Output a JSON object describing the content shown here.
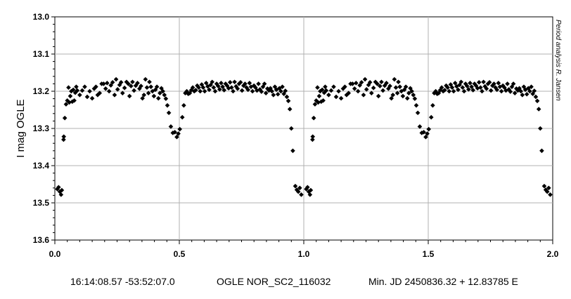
{
  "chart_data": {
    "type": "scatter",
    "ylabel": "I mag OGLE",
    "xlim": [
      0.0,
      2.0
    ],
    "ylim": [
      13.0,
      13.6
    ],
    "y_inverted": true,
    "x_ticks": [
      "0.0",
      "0.5",
      "1.0",
      "1.5",
      "2.0"
    ],
    "y_ticks": [
      "13.0",
      "13.1",
      "13.2",
      "13.3",
      "13.4",
      "13.5",
      "13.6"
    ],
    "grid": true,
    "marker": "diamond",
    "marker_color": "#000000",
    "credit": "Period analysis  R. Jansen",
    "footer": {
      "coords": "16:14:08.57 -53:52:07.0",
      "star_id": "OGLE NOR_SC2_116032",
      "ephemeris": "Min. JD 2450836.32 + 12.83785 E"
    },
    "points": [
      [
        0.01,
        13.463
      ],
      [
        0.015,
        13.458
      ],
      [
        0.02,
        13.47
      ],
      [
        0.025,
        13.478
      ],
      [
        0.028,
        13.466
      ],
      [
        0.035,
        13.33
      ],
      [
        0.036,
        13.322
      ],
      [
        0.04,
        13.272
      ],
      [
        0.045,
        13.235
      ],
      [
        0.05,
        13.225
      ],
      [
        0.055,
        13.19
      ],
      [
        0.058,
        13.23
      ],
      [
        0.062,
        13.213
      ],
      [
        0.066,
        13.2
      ],
      [
        0.07,
        13.228
      ],
      [
        0.074,
        13.196
      ],
      [
        0.078,
        13.225
      ],
      [
        0.082,
        13.204
      ],
      [
        0.086,
        13.188
      ],
      [
        0.09,
        13.198
      ],
      [
        0.1,
        13.21
      ],
      [
        0.11,
        13.198
      ],
      [
        0.12,
        13.188
      ],
      [
        0.13,
        13.215
      ],
      [
        0.14,
        13.2
      ],
      [
        0.15,
        13.219
      ],
      [
        0.158,
        13.193
      ],
      [
        0.165,
        13.188
      ],
      [
        0.172,
        13.21
      ],
      [
        0.18,
        13.205
      ],
      [
        0.188,
        13.18
      ],
      [
        0.196,
        13.18
      ],
      [
        0.204,
        13.193
      ],
      [
        0.21,
        13.178
      ],
      [
        0.218,
        13.2
      ],
      [
        0.225,
        13.184
      ],
      [
        0.232,
        13.176
      ],
      [
        0.24,
        13.21
      ],
      [
        0.246,
        13.168
      ],
      [
        0.252,
        13.195
      ],
      [
        0.26,
        13.183
      ],
      [
        0.266,
        13.176
      ],
      [
        0.272,
        13.205
      ],
      [
        0.28,
        13.191
      ],
      [
        0.288,
        13.175
      ],
      [
        0.295,
        13.18
      ],
      [
        0.3,
        13.213
      ],
      [
        0.306,
        13.186
      ],
      [
        0.312,
        13.175
      ],
      [
        0.318,
        13.198
      ],
      [
        0.325,
        13.185
      ],
      [
        0.332,
        13.178
      ],
      [
        0.34,
        13.193
      ],
      [
        0.346,
        13.186
      ],
      [
        0.352,
        13.219
      ],
      [
        0.358,
        13.21
      ],
      [
        0.364,
        13.168
      ],
      [
        0.37,
        13.19
      ],
      [
        0.376,
        13.205
      ],
      [
        0.38,
        13.175
      ],
      [
        0.386,
        13.188
      ],
      [
        0.392,
        13.2
      ],
      [
        0.398,
        13.213
      ],
      [
        0.404,
        13.196
      ],
      [
        0.41,
        13.188
      ],
      [
        0.416,
        13.219
      ],
      [
        0.422,
        13.205
      ],
      [
        0.428,
        13.192
      ],
      [
        0.434,
        13.2
      ],
      [
        0.44,
        13.21
      ],
      [
        0.446,
        13.22
      ],
      [
        0.452,
        13.238
      ],
      [
        0.458,
        13.258
      ],
      [
        0.466,
        13.295
      ],
      [
        0.474,
        13.312
      ],
      [
        0.482,
        13.31
      ],
      [
        0.49,
        13.323
      ],
      [
        0.496,
        13.314
      ],
      [
        0.502,
        13.302
      ],
      [
        0.512,
        13.27
      ],
      [
        0.518,
        13.238
      ],
      [
        0.524,
        13.205
      ],
      [
        0.53,
        13.2
      ],
      [
        0.536,
        13.207
      ],
      [
        0.542,
        13.205
      ],
      [
        0.548,
        13.197
      ],
      [
        0.554,
        13.19
      ],
      [
        0.56,
        13.2
      ],
      [
        0.566,
        13.197
      ],
      [
        0.572,
        13.185
      ],
      [
        0.578,
        13.19
      ],
      [
        0.584,
        13.2
      ],
      [
        0.59,
        13.182
      ],
      [
        0.596,
        13.19
      ],
      [
        0.602,
        13.2
      ],
      [
        0.608,
        13.178
      ],
      [
        0.614,
        13.187
      ],
      [
        0.62,
        13.196
      ],
      [
        0.626,
        13.183
      ],
      [
        0.632,
        13.175
      ],
      [
        0.638,
        13.19
      ],
      [
        0.644,
        13.2
      ],
      [
        0.65,
        13.18
      ],
      [
        0.656,
        13.186
      ],
      [
        0.662,
        13.195
      ],
      [
        0.668,
        13.178
      ],
      [
        0.674,
        13.188
      ],
      [
        0.68,
        13.197
      ],
      [
        0.686,
        13.18
      ],
      [
        0.692,
        13.185
      ],
      [
        0.698,
        13.192
      ],
      [
        0.704,
        13.176
      ],
      [
        0.71,
        13.19
      ],
      [
        0.716,
        13.2
      ],
      [
        0.722,
        13.175
      ],
      [
        0.728,
        13.187
      ],
      [
        0.734,
        13.193
      ],
      [
        0.74,
        13.18
      ],
      [
        0.746,
        13.176
      ],
      [
        0.752,
        13.198
      ],
      [
        0.758,
        13.185
      ],
      [
        0.764,
        13.18
      ],
      [
        0.77,
        13.19
      ],
      [
        0.776,
        13.196
      ],
      [
        0.782,
        13.178
      ],
      [
        0.788,
        13.188
      ],
      [
        0.794,
        13.2
      ],
      [
        0.8,
        13.185
      ],
      [
        0.806,
        13.19
      ],
      [
        0.812,
        13.198
      ],
      [
        0.818,
        13.18
      ],
      [
        0.824,
        13.195
      ],
      [
        0.83,
        13.201
      ],
      [
        0.836,
        13.188
      ],
      [
        0.842,
        13.18
      ],
      [
        0.848,
        13.205
      ],
      [
        0.854,
        13.193
      ],
      [
        0.86,
        13.198
      ],
      [
        0.866,
        13.192
      ],
      [
        0.872,
        13.2
      ],
      [
        0.878,
        13.21
      ],
      [
        0.884,
        13.188
      ],
      [
        0.89,
        13.196
      ],
      [
        0.896,
        13.208
      ],
      [
        0.902,
        13.192
      ],
      [
        0.908,
        13.2
      ],
      [
        0.914,
        13.188
      ],
      [
        0.92,
        13.207
      ],
      [
        0.926,
        13.199
      ],
      [
        0.932,
        13.215
      ],
      [
        0.938,
        13.226
      ],
      [
        0.944,
        13.248
      ],
      [
        0.95,
        13.3
      ],
      [
        0.956,
        13.36
      ],
      [
        0.966,
        13.455
      ],
      [
        0.972,
        13.465
      ],
      [
        0.978,
        13.47
      ],
      [
        0.984,
        13.46
      ],
      [
        0.99,
        13.478
      ],
      [
        1.01,
        13.463
      ],
      [
        1.015,
        13.458
      ],
      [
        1.02,
        13.47
      ],
      [
        1.025,
        13.478
      ],
      [
        1.028,
        13.466
      ],
      [
        1.035,
        13.33
      ],
      [
        1.036,
        13.322
      ],
      [
        1.04,
        13.272
      ],
      [
        1.045,
        13.235
      ],
      [
        1.05,
        13.225
      ],
      [
        1.055,
        13.19
      ],
      [
        1.058,
        13.23
      ],
      [
        1.062,
        13.213
      ],
      [
        1.066,
        13.2
      ],
      [
        1.07,
        13.228
      ],
      [
        1.074,
        13.196
      ],
      [
        1.078,
        13.225
      ],
      [
        1.082,
        13.204
      ],
      [
        1.086,
        13.188
      ],
      [
        1.09,
        13.198
      ],
      [
        1.1,
        13.21
      ],
      [
        1.11,
        13.198
      ],
      [
        1.12,
        13.188
      ],
      [
        1.13,
        13.215
      ],
      [
        1.14,
        13.2
      ],
      [
        1.15,
        13.219
      ],
      [
        1.158,
        13.193
      ],
      [
        1.165,
        13.188
      ],
      [
        1.172,
        13.21
      ],
      [
        1.18,
        13.205
      ],
      [
        1.188,
        13.18
      ],
      [
        1.196,
        13.18
      ],
      [
        1.204,
        13.193
      ],
      [
        1.21,
        13.178
      ],
      [
        1.218,
        13.2
      ],
      [
        1.225,
        13.184
      ],
      [
        1.232,
        13.176
      ],
      [
        1.24,
        13.21
      ],
      [
        1.246,
        13.168
      ],
      [
        1.252,
        13.195
      ],
      [
        1.26,
        13.183
      ],
      [
        1.266,
        13.176
      ],
      [
        1.272,
        13.205
      ],
      [
        1.28,
        13.191
      ],
      [
        1.288,
        13.175
      ],
      [
        1.295,
        13.18
      ],
      [
        1.3,
        13.213
      ],
      [
        1.306,
        13.186
      ],
      [
        1.312,
        13.175
      ],
      [
        1.318,
        13.198
      ],
      [
        1.325,
        13.185
      ],
      [
        1.332,
        13.178
      ],
      [
        1.34,
        13.193
      ],
      [
        1.346,
        13.186
      ],
      [
        1.352,
        13.219
      ],
      [
        1.358,
        13.21
      ],
      [
        1.364,
        13.168
      ],
      [
        1.37,
        13.19
      ],
      [
        1.376,
        13.205
      ],
      [
        1.38,
        13.175
      ],
      [
        1.386,
        13.188
      ],
      [
        1.392,
        13.2
      ],
      [
        1.398,
        13.213
      ],
      [
        1.404,
        13.196
      ],
      [
        1.41,
        13.188
      ],
      [
        1.416,
        13.219
      ],
      [
        1.422,
        13.205
      ],
      [
        1.428,
        13.192
      ],
      [
        1.434,
        13.2
      ],
      [
        1.44,
        13.21
      ],
      [
        1.446,
        13.22
      ],
      [
        1.452,
        13.238
      ],
      [
        1.458,
        13.258
      ],
      [
        1.466,
        13.295
      ],
      [
        1.474,
        13.312
      ],
      [
        1.482,
        13.31
      ],
      [
        1.49,
        13.323
      ],
      [
        1.496,
        13.314
      ],
      [
        1.502,
        13.302
      ],
      [
        1.512,
        13.27
      ],
      [
        1.518,
        13.238
      ],
      [
        1.524,
        13.205
      ],
      [
        1.53,
        13.2
      ],
      [
        1.536,
        13.207
      ],
      [
        1.542,
        13.205
      ],
      [
        1.548,
        13.197
      ],
      [
        1.554,
        13.19
      ],
      [
        1.56,
        13.2
      ],
      [
        1.566,
        13.197
      ],
      [
        1.572,
        13.185
      ],
      [
        1.578,
        13.19
      ],
      [
        1.584,
        13.2
      ],
      [
        1.59,
        13.182
      ],
      [
        1.596,
        13.19
      ],
      [
        1.602,
        13.2
      ],
      [
        1.608,
        13.178
      ],
      [
        1.614,
        13.187
      ],
      [
        1.62,
        13.196
      ],
      [
        1.626,
        13.183
      ],
      [
        1.632,
        13.175
      ],
      [
        1.638,
        13.19
      ],
      [
        1.644,
        13.2
      ],
      [
        1.65,
        13.18
      ],
      [
        1.656,
        13.186
      ],
      [
        1.662,
        13.195
      ],
      [
        1.668,
        13.178
      ],
      [
        1.674,
        13.188
      ],
      [
        1.68,
        13.197
      ],
      [
        1.686,
        13.18
      ],
      [
        1.692,
        13.185
      ],
      [
        1.698,
        13.192
      ],
      [
        1.704,
        13.176
      ],
      [
        1.71,
        13.19
      ],
      [
        1.716,
        13.2
      ],
      [
        1.722,
        13.175
      ],
      [
        1.728,
        13.187
      ],
      [
        1.734,
        13.193
      ],
      [
        1.74,
        13.18
      ],
      [
        1.746,
        13.176
      ],
      [
        1.752,
        13.198
      ],
      [
        1.758,
        13.185
      ],
      [
        1.764,
        13.18
      ],
      [
        1.77,
        13.19
      ],
      [
        1.776,
        13.196
      ],
      [
        1.782,
        13.178
      ],
      [
        1.788,
        13.188
      ],
      [
        1.794,
        13.2
      ],
      [
        1.8,
        13.185
      ],
      [
        1.806,
        13.19
      ],
      [
        1.812,
        13.198
      ],
      [
        1.818,
        13.18
      ],
      [
        1.824,
        13.195
      ],
      [
        1.83,
        13.201
      ],
      [
        1.836,
        13.188
      ],
      [
        1.842,
        13.18
      ],
      [
        1.848,
        13.205
      ],
      [
        1.854,
        13.193
      ],
      [
        1.86,
        13.198
      ],
      [
        1.866,
        13.192
      ],
      [
        1.872,
        13.2
      ],
      [
        1.878,
        13.21
      ],
      [
        1.884,
        13.188
      ],
      [
        1.89,
        13.196
      ],
      [
        1.896,
        13.208
      ],
      [
        1.902,
        13.192
      ],
      [
        1.908,
        13.2
      ],
      [
        1.914,
        13.188
      ],
      [
        1.92,
        13.207
      ],
      [
        1.926,
        13.199
      ],
      [
        1.932,
        13.215
      ],
      [
        1.938,
        13.226
      ],
      [
        1.944,
        13.248
      ],
      [
        1.95,
        13.3
      ],
      [
        1.956,
        13.36
      ],
      [
        1.966,
        13.455
      ],
      [
        1.972,
        13.465
      ],
      [
        1.978,
        13.47
      ],
      [
        1.984,
        13.46
      ],
      [
        1.99,
        13.478
      ]
    ]
  }
}
